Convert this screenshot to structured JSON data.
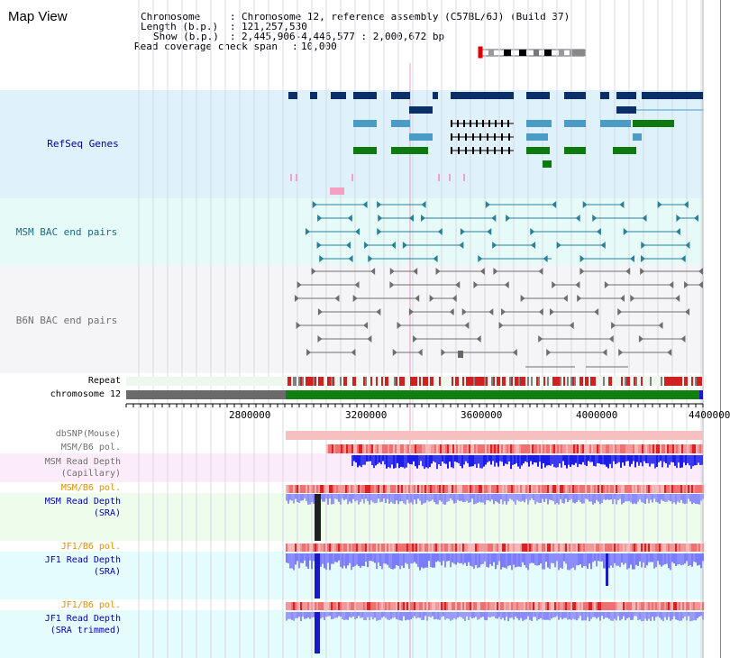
{
  "header": {
    "title": "Map View",
    "chromosome_key": "Chromosome",
    "chromosome_value": "Chromosome 12, reference assembly (C57BL/6J) (Build 37)",
    "length_key": "Length (b.p.)",
    "length_value": "121,257,530",
    "show_key": "Show (b.p.)",
    "show_value": "2,445,906-4,446,577 : 2,000,672 bp",
    "span_key": "Read coverage check span",
    "span_value": "10,000"
  },
  "tracks": {
    "refseq": "RefSeq Genes",
    "msm_bac": "MSM BAC end pairs",
    "b6n_bac": "B6N BAC end pairs",
    "repeat": "Repeat",
    "chromosome": "chromosome 12",
    "dbsnp": "dbSNP(Mouse)",
    "msm_b6_pol_1": "MSM/B6 pol.",
    "msm_depth_cap_1": "MSM Read Depth",
    "msm_depth_cap_2": "(Capillary)",
    "msm_b6_pol_2": "MSM/B6 pol.",
    "msm_depth_sra_1": "MSM Read Depth",
    "msm_depth_sra_2": "(SRA)",
    "jf1_b6_pol_1": "JF1/B6 pol.",
    "jf1_depth_sra_1": "JF1 Read Depth",
    "jf1_depth_sra_2": "(SRA)",
    "jf1_b6_pol_2": "JF1/B6 pol.",
    "jf1_depth_trim_1": "JF1 Read Depth",
    "jf1_depth_trim_2": "(SRA trimmed)"
  },
  "ruler": {
    "ticks": [
      "2800000",
      "3200000",
      "3600000",
      "4000000",
      "4400000"
    ]
  },
  "colors": {
    "refseq_bg": "#dff1fa",
    "msm_bac_bg": "#e6faf8",
    "b6n_bac_bg": "#f5f5f8",
    "cap_bg": "#fcecfa",
    "sra_bg": "#eefcec",
    "jf1_bg": "#e4fcfc",
    "gene_navy": "#0a2f66",
    "gene_teal": "#4a9cc4",
    "gene_green": "#0d7a0d",
    "bac_teal": "#2a7f9a",
    "bac_gray": "#6e6e6e",
    "depth_blue": "#1c1ce8",
    "depth_light": "#8a8cff",
    "pol_red": "#f07070",
    "label_blue": "#0000b0",
    "label_orange": "#e89000",
    "label_teal": "#1c6a8a"
  },
  "icons": {
    "chromosome_ideogram": "chromosome-ideogram-icon"
  }
}
